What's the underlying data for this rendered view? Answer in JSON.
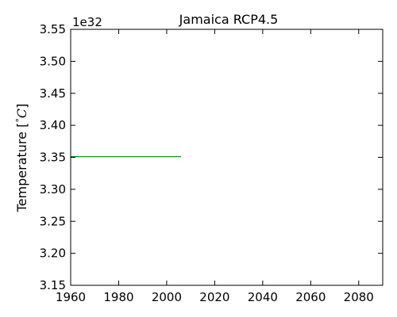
{
  "chart_data": {
    "type": "line",
    "title": "Jamaica  RCP4.5",
    "ylabel": {
      "prefix": "Temperature [",
      "degree": "°",
      "unit": "C",
      "suffix": "]"
    },
    "xlabel": "",
    "y_offset_label": "1e32",
    "xlim": [
      1960,
      2090
    ],
    "ylim": [
      3.15,
      3.55
    ],
    "y_scale_factor": 1e+32,
    "x_ticks": [
      1960,
      1980,
      2000,
      2020,
      2040,
      2060,
      2080
    ],
    "x_tick_labels": [
      "1960",
      "1980",
      "2000",
      "2020",
      "2040",
      "2060",
      "2080"
    ],
    "y_ticks": [
      3.15,
      3.2,
      3.25,
      3.3,
      3.35,
      3.4,
      3.45,
      3.5,
      3.55
    ],
    "y_tick_labels": [
      "3.15",
      "3.20",
      "3.25",
      "3.30",
      "3.35",
      "3.40",
      "3.45",
      "3.50",
      "3.55"
    ],
    "grid": false,
    "legend": "none",
    "series": [
      {
        "color": "#008000",
        "x": [
          1960,
          2006
        ],
        "y": [
          3.351,
          3.351
        ]
      }
    ]
  }
}
